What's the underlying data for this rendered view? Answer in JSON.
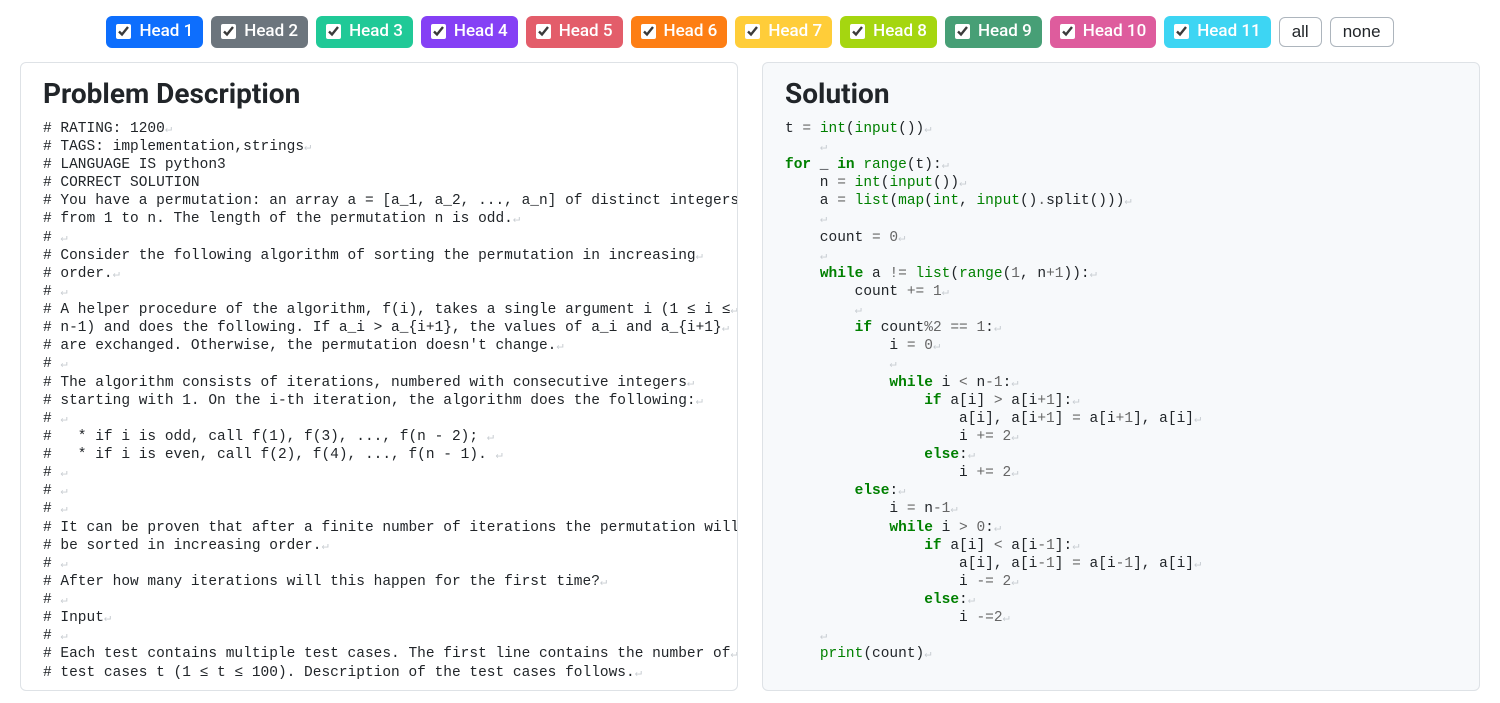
{
  "heads": [
    {
      "label": "Head 1",
      "bg": "#0d6efd"
    },
    {
      "label": "Head 2",
      "bg": "#6c757d"
    },
    {
      "label": "Head 3",
      "bg": "#20c997"
    },
    {
      "label": "Head 4",
      "bg": "#8540f5"
    },
    {
      "label": "Head 5",
      "bg": "#e35d6a"
    },
    {
      "label": "Head 6",
      "bg": "#fd7e14"
    },
    {
      "label": "Head 7",
      "bg": "#ffcd39"
    },
    {
      "label": "Head 8",
      "bg": "#a5d610"
    },
    {
      "label": "Head 9",
      "bg": "#479f76"
    },
    {
      "label": "Head 10",
      "bg": "#de5c9d"
    },
    {
      "label": "Head 11",
      "bg": "#3dd5f3"
    }
  ],
  "buttons": {
    "all": "all",
    "none": "none"
  },
  "problem": {
    "title": "Problem Description",
    "lines": [
      "# RATING: 1200",
      "# TAGS: implementation,strings",
      "# LANGUAGE IS python3",
      "# CORRECT SOLUTION",
      "# You have a permutation: an array a = [a_1, a_2, ..., a_n] of distinct integers",
      "# from 1 to n. The length of the permutation n is odd.",
      "# ",
      "# Consider the following algorithm of sorting the permutation in increasing",
      "# order.",
      "# ",
      "# A helper procedure of the algorithm, f(i), takes a single argument i (1 ≤ i ≤",
      "# n-1) and does the following. If a_i > a_{i+1}, the values of a_i and a_{i+1}",
      "# are exchanged. Otherwise, the permutation doesn't change.",
      "# ",
      "# The algorithm consists of iterations, numbered with consecutive integers",
      "# starting with 1. On the i-th iteration, the algorithm does the following:",
      "# ",
      "#   * if i is odd, call f(1), f(3), ..., f(n - 2); ",
      "#   * if i is even, call f(2), f(4), ..., f(n - 1). ",
      "# ",
      "# ",
      "# ",
      "# It can be proven that after a finite number of iterations the permutation will",
      "# be sorted in increasing order.",
      "# ",
      "# After how many iterations will this happen for the first time?",
      "# ",
      "# Input",
      "# ",
      "# Each test contains multiple test cases. The first line contains the number of",
      "# test cases t (1 ≤ t ≤ 100). Description of the test cases follows."
    ]
  },
  "solution": {
    "title": "Solution",
    "tokens": [
      [
        [
          "",
          "t "
        ],
        [
          "op",
          "= "
        ],
        [
          "bi",
          "int"
        ],
        [
          "",
          "("
        ],
        [
          "bi",
          "input"
        ],
        [
          "",
          "())"
        ]
      ],
      [
        [
          "",
          "    "
        ]
      ],
      [
        [
          "kw",
          "for"
        ],
        [
          "",
          " _ "
        ],
        [
          "kw",
          "in"
        ],
        [
          "",
          " "
        ],
        [
          "bi",
          "range"
        ],
        [
          "",
          "(t):"
        ]
      ],
      [
        [
          "",
          "    n "
        ],
        [
          "op",
          "= "
        ],
        [
          "bi",
          "int"
        ],
        [
          "",
          "("
        ],
        [
          "bi",
          "input"
        ],
        [
          "",
          "())"
        ]
      ],
      [
        [
          "",
          "    a "
        ],
        [
          "op",
          "= "
        ],
        [
          "bi",
          "list"
        ],
        [
          "",
          "("
        ],
        [
          "bi",
          "map"
        ],
        [
          "",
          "("
        ],
        [
          "bi",
          "int"
        ],
        [
          "",
          ", "
        ],
        [
          "bi",
          "input"
        ],
        [
          "",
          "()"
        ],
        [
          "op",
          "."
        ],
        [
          "",
          "split()))"
        ]
      ],
      [
        [
          "",
          "    "
        ]
      ],
      [
        [
          "",
          "    count "
        ],
        [
          "op",
          "= "
        ],
        [
          "num",
          "0"
        ]
      ],
      [
        [
          "",
          "    "
        ]
      ],
      [
        [
          "",
          "    "
        ],
        [
          "kw",
          "while"
        ],
        [
          "",
          " a "
        ],
        [
          "op",
          "!= "
        ],
        [
          "bi",
          "list"
        ],
        [
          "",
          "("
        ],
        [
          "bi",
          "range"
        ],
        [
          "",
          "("
        ],
        [
          "num",
          "1"
        ],
        [
          "",
          ", n"
        ],
        [
          "op",
          "+"
        ],
        [
          "num",
          "1"
        ],
        [
          "",
          ")):"
        ]
      ],
      [
        [
          "",
          "        count "
        ],
        [
          "op",
          "+= "
        ],
        [
          "num",
          "1"
        ]
      ],
      [
        [
          "",
          "        "
        ]
      ],
      [
        [
          "",
          "        "
        ],
        [
          "kw",
          "if"
        ],
        [
          "",
          " count"
        ],
        [
          "op",
          "%"
        ],
        [
          "num",
          "2"
        ],
        [
          "",
          " "
        ],
        [
          "op",
          "== "
        ],
        [
          "num",
          "1"
        ],
        [
          "",
          ":"
        ]
      ],
      [
        [
          "",
          "            i "
        ],
        [
          "op",
          "= "
        ],
        [
          "num",
          "0"
        ]
      ],
      [
        [
          "",
          "            "
        ]
      ],
      [
        [
          "",
          "            "
        ],
        [
          "kw",
          "while"
        ],
        [
          "",
          " i "
        ],
        [
          "op",
          "<"
        ],
        [
          "",
          " n"
        ],
        [
          "op",
          "-"
        ],
        [
          "num",
          "1"
        ],
        [
          "",
          ":"
        ]
      ],
      [
        [
          "",
          "                "
        ],
        [
          "kw",
          "if"
        ],
        [
          "",
          " a[i] "
        ],
        [
          "op",
          ">"
        ],
        [
          "",
          " a[i"
        ],
        [
          "op",
          "+"
        ],
        [
          "num",
          "1"
        ],
        [
          "",
          "]:"
        ]
      ],
      [
        [
          "",
          "                    a[i], a[i"
        ],
        [
          "op",
          "+"
        ],
        [
          "num",
          "1"
        ],
        [
          "",
          "] "
        ],
        [
          "op",
          "="
        ],
        [
          "",
          " a[i"
        ],
        [
          "op",
          "+"
        ],
        [
          "num",
          "1"
        ],
        [
          "",
          "], a[i]"
        ]
      ],
      [
        [
          "",
          "                    i "
        ],
        [
          "op",
          "+= "
        ],
        [
          "num",
          "2"
        ]
      ],
      [
        [
          "",
          "                "
        ],
        [
          "kw",
          "else"
        ],
        [
          "",
          ":"
        ]
      ],
      [
        [
          "",
          "                    i "
        ],
        [
          "op",
          "+= "
        ],
        [
          "num",
          "2"
        ]
      ],
      [
        [
          "",
          "        "
        ],
        [
          "kw",
          "else"
        ],
        [
          "",
          ":"
        ]
      ],
      [
        [
          "",
          "            i "
        ],
        [
          "op",
          "="
        ],
        [
          "",
          " n"
        ],
        [
          "op",
          "-"
        ],
        [
          "num",
          "1"
        ]
      ],
      [
        [
          "",
          "            "
        ],
        [
          "kw",
          "while"
        ],
        [
          "",
          " i "
        ],
        [
          "op",
          ">"
        ],
        [
          "",
          " "
        ],
        [
          "num",
          "0"
        ],
        [
          "",
          ":"
        ]
      ],
      [
        [
          "",
          "                "
        ],
        [
          "kw",
          "if"
        ],
        [
          "",
          " a[i] "
        ],
        [
          "op",
          "<"
        ],
        [
          "",
          " a[i"
        ],
        [
          "op",
          "-"
        ],
        [
          "num",
          "1"
        ],
        [
          "",
          "]:"
        ]
      ],
      [
        [
          "",
          "                    a[i], a[i"
        ],
        [
          "op",
          "-"
        ],
        [
          "num",
          "1"
        ],
        [
          "",
          "] "
        ],
        [
          "op",
          "="
        ],
        [
          "",
          " a[i"
        ],
        [
          "op",
          "-"
        ],
        [
          "num",
          "1"
        ],
        [
          "",
          "], a[i]"
        ]
      ],
      [
        [
          "",
          "                    i "
        ],
        [
          "op",
          "-= "
        ],
        [
          "num",
          "2"
        ]
      ],
      [
        [
          "",
          "                "
        ],
        [
          "kw",
          "else"
        ],
        [
          "",
          ":"
        ]
      ],
      [
        [
          "",
          "                    i "
        ],
        [
          "op",
          "-="
        ],
        [
          "num",
          "2"
        ]
      ],
      [
        [
          "",
          "    "
        ]
      ],
      [
        [
          "",
          "    "
        ],
        [
          "bi",
          "print"
        ],
        [
          "",
          "(count)"
        ]
      ]
    ]
  },
  "colors": {
    "border": "#dee2e6",
    "panel_right_bg": "#f7f9fb",
    "pilcrow": "#c8cdd2",
    "kw": "#008000",
    "bi": "#008000",
    "op": "#666666",
    "num": "#666666"
  }
}
